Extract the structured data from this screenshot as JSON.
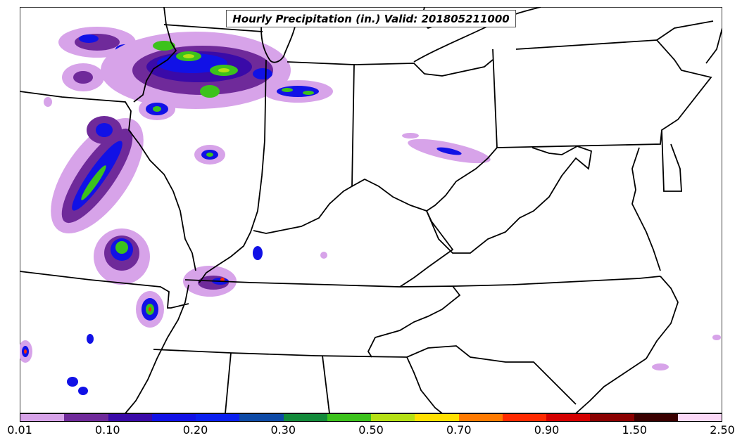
{
  "title": "Hourly Precipitation (in.) Valid: 201805211000",
  "colorbar": {
    "colors": [
      "#d7a3e9",
      "#6f2a9a",
      "#3a0aa8",
      "#1111e6",
      "#0a1ff0",
      "#0e4aa6",
      "#128a3a",
      "#3cc21c",
      "#b5e014",
      "#ffe000",
      "#ff7a00",
      "#ff2a00",
      "#d40000",
      "#8a0000",
      "#3a0000",
      "#fbd9f7"
    ],
    "tick_labels": [
      "0.01",
      "0.10",
      "0.20",
      "0.30",
      "0.50",
      "0.70",
      "0.90",
      "1.50",
      "2.50"
    ]
  }
}
